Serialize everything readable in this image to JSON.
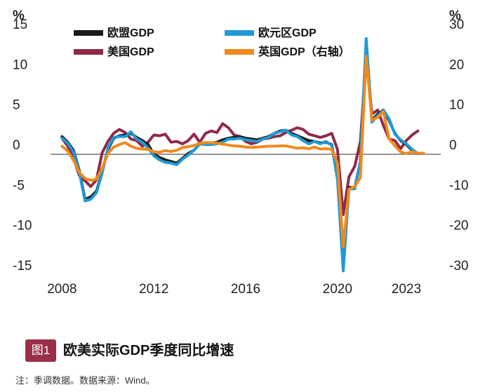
{
  "chart_data": {
    "type": "line",
    "title": "",
    "left_unit": "%",
    "right_unit": "%",
    "left_ylim": [
      -15,
      15
    ],
    "right_ylim": [
      -30,
      30
    ],
    "left_ticks": [
      {
        "value": 15,
        "label": "15"
      },
      {
        "value": 10,
        "label": "10"
      },
      {
        "value": 5,
        "label": "5"
      },
      {
        "value": 0,
        "label": "0"
      },
      {
        "value": -5,
        "label": "-5"
      },
      {
        "value": -10,
        "label": "-10"
      },
      {
        "value": -15,
        "label": "-15"
      }
    ],
    "right_ticks": [
      {
        "value": 30,
        "label": "30"
      },
      {
        "value": 20,
        "label": "20"
      },
      {
        "value": 10,
        "label": "10"
      },
      {
        "value": 0,
        "label": "0"
      },
      {
        "value": -10,
        "label": "-10"
      },
      {
        "value": -20,
        "label": "-20"
      },
      {
        "value": -30,
        "label": "-30"
      }
    ],
    "x_ticks": [
      {
        "value": 2008.0,
        "label": "2008"
      },
      {
        "value": 2012.0,
        "label": "2012"
      },
      {
        "value": 2016.0,
        "label": "2016"
      },
      {
        "value": 2020.0,
        "label": "2020"
      },
      {
        "value": 2023.0,
        "label": "2023"
      }
    ],
    "x_range": [
      2007.5,
      2024.5
    ],
    "zero_line": true,
    "grid": false,
    "legend_position": "top",
    "series": [
      {
        "name": "欧盟GDP",
        "color": "#1a1a1a",
        "axis": "left",
        "points": [
          [
            2008.0,
            2.2
          ],
          [
            2008.25,
            1.5
          ],
          [
            2008.5,
            0.5
          ],
          [
            2008.75,
            -2.0
          ],
          [
            2009.0,
            -5.6
          ],
          [
            2009.25,
            -5.3
          ],
          [
            2009.5,
            -4.6
          ],
          [
            2009.75,
            -2.2
          ],
          [
            2010.0,
            0.6
          ],
          [
            2010.25,
            2.0
          ],
          [
            2010.5,
            2.3
          ],
          [
            2010.75,
            2.4
          ],
          [
            2011.0,
            2.6
          ],
          [
            2011.25,
            2.1
          ],
          [
            2011.5,
            1.7
          ],
          [
            2011.75,
            1.2
          ],
          [
            2012.0,
            0.0
          ],
          [
            2012.25,
            -0.4
          ],
          [
            2012.5,
            -0.7
          ],
          [
            2012.75,
            -0.9
          ],
          [
            2013.0,
            -1.1
          ],
          [
            2013.25,
            -0.5
          ],
          [
            2013.5,
            0.1
          ],
          [
            2013.75,
            0.5
          ],
          [
            2014.0,
            1.3
          ],
          [
            2014.25,
            1.3
          ],
          [
            2014.5,
            1.4
          ],
          [
            2014.75,
            1.5
          ],
          [
            2015.0,
            1.8
          ],
          [
            2015.25,
            2.0
          ],
          [
            2015.5,
            2.1
          ],
          [
            2015.75,
            2.2
          ],
          [
            2016.0,
            2.0
          ],
          [
            2016.25,
            1.9
          ],
          [
            2016.5,
            1.8
          ],
          [
            2016.75,
            2.0
          ],
          [
            2017.0,
            2.2
          ],
          [
            2017.25,
            2.6
          ],
          [
            2017.5,
            2.9
          ],
          [
            2017.75,
            3.0
          ],
          [
            2018.0,
            2.6
          ],
          [
            2018.25,
            2.3
          ],
          [
            2018.5,
            2.0
          ],
          [
            2018.75,
            1.7
          ],
          [
            2019.0,
            1.6
          ],
          [
            2019.25,
            1.4
          ],
          [
            2019.5,
            1.5
          ],
          [
            2019.75,
            1.2
          ],
          [
            2020.0,
            -2.6
          ],
          [
            2020.25,
            -13.8
          ],
          [
            2020.5,
            -4.1
          ],
          [
            2020.75,
            -4.2
          ],
          [
            2021.0,
            -0.9
          ],
          [
            2021.25,
            14.0
          ],
          [
            2021.5,
            4.2
          ],
          [
            2021.75,
            5.0
          ],
          [
            2022.0,
            5.5
          ],
          [
            2022.25,
            4.2
          ],
          [
            2022.5,
            2.6
          ],
          [
            2022.75,
            1.7
          ],
          [
            2023.0,
            1.2
          ],
          [
            2023.25,
            0.5
          ],
          [
            2023.5,
            0.1
          ],
          [
            2023.75,
            0.1
          ]
        ]
      },
      {
        "name": "欧元区GDP",
        "color": "#1f9ad6",
        "axis": "left",
        "points": [
          [
            2008.0,
            2.0
          ],
          [
            2008.25,
            1.4
          ],
          [
            2008.5,
            0.3
          ],
          [
            2008.75,
            -2.2
          ],
          [
            2009.0,
            -5.8
          ],
          [
            2009.25,
            -5.6
          ],
          [
            2009.5,
            -4.8
          ],
          [
            2009.75,
            -2.3
          ],
          [
            2010.0,
            0.8
          ],
          [
            2010.25,
            2.1
          ],
          [
            2010.5,
            2.2
          ],
          [
            2010.75,
            2.2
          ],
          [
            2011.0,
            2.8
          ],
          [
            2011.25,
            1.9
          ],
          [
            2011.5,
            1.5
          ],
          [
            2011.75,
            0.8
          ],
          [
            2012.0,
            -0.2
          ],
          [
            2012.25,
            -0.7
          ],
          [
            2012.5,
            -1.0
          ],
          [
            2012.75,
            -1.1
          ],
          [
            2013.0,
            -1.3
          ],
          [
            2013.25,
            -0.6
          ],
          [
            2013.5,
            -0.1
          ],
          [
            2013.75,
            0.5
          ],
          [
            2014.0,
            1.3
          ],
          [
            2014.25,
            1.2
          ],
          [
            2014.5,
            1.2
          ],
          [
            2014.75,
            1.3
          ],
          [
            2015.0,
            1.5
          ],
          [
            2015.25,
            1.9
          ],
          [
            2015.5,
            1.9
          ],
          [
            2015.75,
            2.0
          ],
          [
            2016.0,
            1.8
          ],
          [
            2016.25,
            1.7
          ],
          [
            2016.5,
            1.6
          ],
          [
            2016.75,
            1.9
          ],
          [
            2017.0,
            2.1
          ],
          [
            2017.25,
            2.6
          ],
          [
            2017.5,
            2.8
          ],
          [
            2017.75,
            3.0
          ],
          [
            2018.0,
            2.4
          ],
          [
            2018.25,
            2.2
          ],
          [
            2018.5,
            1.7
          ],
          [
            2018.75,
            1.3
          ],
          [
            2019.0,
            1.6
          ],
          [
            2019.25,
            1.3
          ],
          [
            2019.5,
            1.6
          ],
          [
            2019.75,
            1.1
          ],
          [
            2020.0,
            -3.1
          ],
          [
            2020.25,
            -14.5
          ],
          [
            2020.5,
            -4.3
          ],
          [
            2020.75,
            -4.3
          ],
          [
            2021.0,
            -0.9
          ],
          [
            2021.25,
            14.4
          ],
          [
            2021.5,
            4.0
          ],
          [
            2021.75,
            4.8
          ],
          [
            2022.0,
            5.5
          ],
          [
            2022.25,
            4.4
          ],
          [
            2022.5,
            2.5
          ],
          [
            2022.75,
            1.8
          ],
          [
            2023.0,
            1.3
          ],
          [
            2023.25,
            0.6
          ],
          [
            2023.5,
            0.1
          ],
          [
            2023.75,
            0.1
          ]
        ]
      },
      {
        "name": "美国GDP",
        "color": "#8f2a49",
        "axis": "left",
        "points": [
          [
            2008.0,
            2.0
          ],
          [
            2008.25,
            1.0
          ],
          [
            2008.5,
            -0.5
          ],
          [
            2008.75,
            -2.6
          ],
          [
            2009.0,
            -3.3
          ],
          [
            2009.25,
            -4.0
          ],
          [
            2009.5,
            -3.2
          ],
          [
            2009.75,
            0.2
          ],
          [
            2010.0,
            1.6
          ],
          [
            2010.25,
            2.6
          ],
          [
            2010.5,
            3.1
          ],
          [
            2010.75,
            2.7
          ],
          [
            2011.0,
            1.9
          ],
          [
            2011.25,
            1.7
          ],
          [
            2011.5,
            1.0
          ],
          [
            2011.75,
            1.5
          ],
          [
            2012.0,
            2.4
          ],
          [
            2012.25,
            2.3
          ],
          [
            2012.5,
            2.5
          ],
          [
            2012.75,
            1.5
          ],
          [
            2013.0,
            1.6
          ],
          [
            2013.25,
            1.3
          ],
          [
            2013.5,
            1.7
          ],
          [
            2013.75,
            2.5
          ],
          [
            2014.0,
            1.5
          ],
          [
            2014.25,
            2.6
          ],
          [
            2014.5,
            2.9
          ],
          [
            2014.75,
            2.7
          ],
          [
            2015.0,
            3.8
          ],
          [
            2015.25,
            3.3
          ],
          [
            2015.5,
            2.4
          ],
          [
            2015.75,
            2.2
          ],
          [
            2016.0,
            1.6
          ],
          [
            2016.25,
            1.3
          ],
          [
            2016.5,
            1.5
          ],
          [
            2016.75,
            1.9
          ],
          [
            2017.0,
            2.0
          ],
          [
            2017.25,
            2.2
          ],
          [
            2017.5,
            2.3
          ],
          [
            2017.75,
            2.7
          ],
          [
            2018.0,
            3.0
          ],
          [
            2018.25,
            3.3
          ],
          [
            2018.5,
            3.1
          ],
          [
            2018.75,
            2.5
          ],
          [
            2019.0,
            2.3
          ],
          [
            2019.25,
            2.1
          ],
          [
            2019.5,
            2.3
          ],
          [
            2019.75,
            2.6
          ],
          [
            2020.0,
            0.6
          ],
          [
            2020.25,
            -7.5
          ],
          [
            2020.5,
            -2.8
          ],
          [
            2020.75,
            -1.5
          ],
          [
            2021.0,
            1.6
          ],
          [
            2021.25,
            12.2
          ],
          [
            2021.5,
            5.0
          ],
          [
            2021.75,
            5.5
          ],
          [
            2022.0,
            3.6
          ],
          [
            2022.25,
            1.9
          ],
          [
            2022.5,
            1.7
          ],
          [
            2022.75,
            0.7
          ],
          [
            2023.0,
            1.7
          ],
          [
            2023.25,
            2.4
          ],
          [
            2023.5,
            2.9
          ]
        ]
      },
      {
        "name": "英国GDP（右轴）",
        "color": "#f08a1c",
        "axis": "right",
        "points": [
          [
            2008.0,
            2.0
          ],
          [
            2008.25,
            0.8
          ],
          [
            2008.5,
            -1.5
          ],
          [
            2008.75,
            -4.5
          ],
          [
            2009.0,
            -6.0
          ],
          [
            2009.25,
            -6.5
          ],
          [
            2009.5,
            -6.2
          ],
          [
            2009.75,
            -3.5
          ],
          [
            2010.0,
            0.2
          ],
          [
            2010.25,
            1.8
          ],
          [
            2010.5,
            2.4
          ],
          [
            2010.75,
            2.9
          ],
          [
            2011.0,
            2.0
          ],
          [
            2011.25,
            1.5
          ],
          [
            2011.5,
            1.3
          ],
          [
            2011.75,
            1.2
          ],
          [
            2012.0,
            0.6
          ],
          [
            2012.25,
            0.5
          ],
          [
            2012.5,
            0.9
          ],
          [
            2012.75,
            0.7
          ],
          [
            2013.0,
            1.0
          ],
          [
            2013.25,
            1.7
          ],
          [
            2013.5,
            1.9
          ],
          [
            2013.75,
            2.2
          ],
          [
            2014.0,
            2.7
          ],
          [
            2014.25,
            2.9
          ],
          [
            2014.5,
            2.9
          ],
          [
            2014.75,
            2.8
          ],
          [
            2015.0,
            2.5
          ],
          [
            2015.25,
            2.3
          ],
          [
            2015.5,
            2.1
          ],
          [
            2015.75,
            2.0
          ],
          [
            2016.0,
            1.8
          ],
          [
            2016.25,
            1.7
          ],
          [
            2016.5,
            1.8
          ],
          [
            2016.75,
            1.9
          ],
          [
            2017.0,
            2.0
          ],
          [
            2017.25,
            2.0
          ],
          [
            2017.5,
            2.1
          ],
          [
            2017.75,
            2.1
          ],
          [
            2018.0,
            1.8
          ],
          [
            2018.25,
            1.5
          ],
          [
            2018.5,
            1.6
          ],
          [
            2018.75,
            1.4
          ],
          [
            2019.0,
            1.8
          ],
          [
            2019.25,
            1.3
          ],
          [
            2019.5,
            1.4
          ],
          [
            2019.75,
            1.2
          ],
          [
            2020.0,
            -2.2
          ],
          [
            2020.25,
            -23.0
          ],
          [
            2020.5,
            -8.7
          ],
          [
            2020.75,
            -8.0
          ],
          [
            2021.0,
            -5.8
          ],
          [
            2021.25,
            24.4
          ],
          [
            2021.5,
            8.5
          ],
          [
            2021.75,
            9.2
          ],
          [
            2022.0,
            10.6
          ],
          [
            2022.25,
            3.8
          ],
          [
            2022.5,
            2.1
          ],
          [
            2022.75,
            0.6
          ],
          [
            2023.0,
            0.2
          ],
          [
            2023.25,
            0.6
          ],
          [
            2023.5,
            0.3
          ],
          [
            2023.75,
            0.2
          ]
        ]
      }
    ]
  },
  "caption": {
    "badge": "图1",
    "title": "欧美实际GDP季度同比增速",
    "note": "注：季调数据。数据来源：Wind。"
  }
}
